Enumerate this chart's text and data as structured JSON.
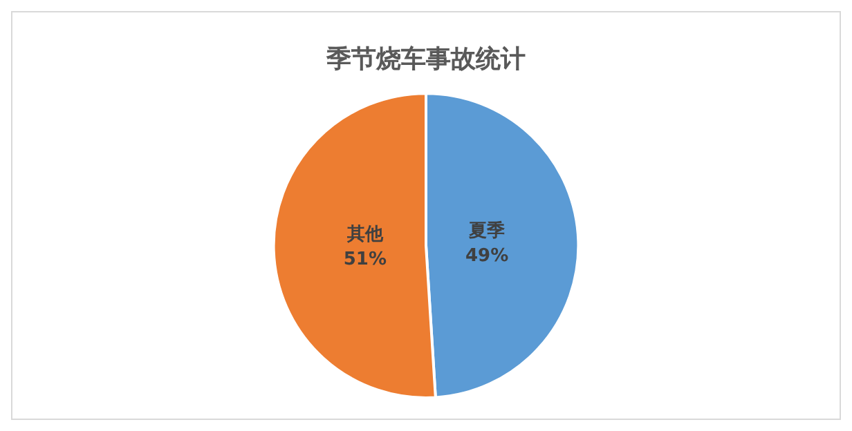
{
  "chart_data": {
    "type": "pie",
    "title": "季节烧车事故统计",
    "categories": [
      "夏季",
      "其他"
    ],
    "values": [
      49,
      51
    ],
    "colors": [
      "#5b9bd5",
      "#ed7d31"
    ],
    "value_labels": [
      "49%",
      "51%"
    ],
    "legend": false
  }
}
